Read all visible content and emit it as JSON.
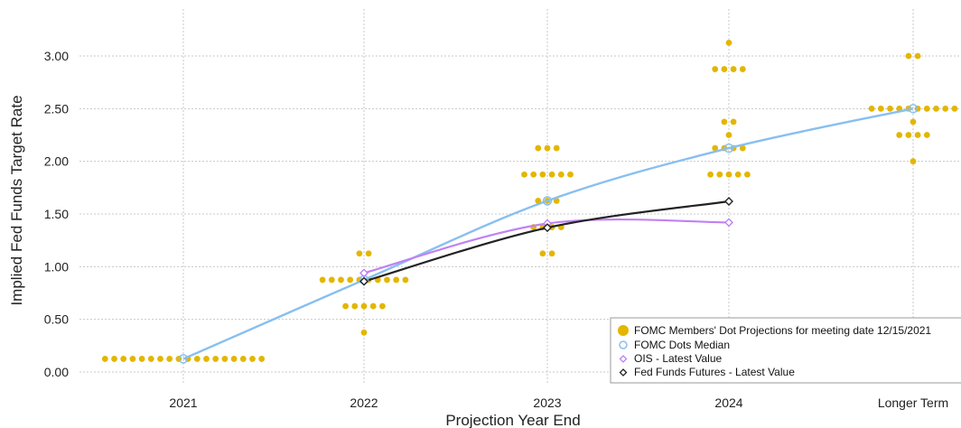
{
  "chart_data": {
    "type": "scatter",
    "xlabel": "Projection Year End",
    "ylabel": "Implied Fed Funds Target Rate",
    "categories": [
      "2021",
      "2022",
      "2023",
      "2024",
      "Longer Term"
    ],
    "y_ticks": [
      "0.00",
      "0.50",
      "1.00",
      "1.50",
      "2.00",
      "2.50",
      "3.00"
    ],
    "ylim": [
      -0.1,
      3.4
    ],
    "grid": true,
    "legend_position": "bottom-right",
    "dots": {
      "name": "FOMC Members' Dot Projections for meeting date 12/15/2021",
      "color": "#e3b600",
      "groups": [
        {
          "category": "2021",
          "points": [
            {
              "rate": 0.125,
              "count": 18
            }
          ]
        },
        {
          "category": "2022",
          "points": [
            {
              "rate": 1.125,
              "count": 2
            },
            {
              "rate": 0.875,
              "count": 10
            },
            {
              "rate": 0.625,
              "count": 5
            },
            {
              "rate": 0.375,
              "count": 1
            }
          ]
        },
        {
          "category": "2023",
          "points": [
            {
              "rate": 2.125,
              "count": 3
            },
            {
              "rate": 1.875,
              "count": 6
            },
            {
              "rate": 1.625,
              "count": 3
            },
            {
              "rate": 1.375,
              "count": 4
            },
            {
              "rate": 1.125,
              "count": 2
            }
          ]
        },
        {
          "category": "2024",
          "points": [
            {
              "rate": 3.125,
              "count": 1
            },
            {
              "rate": 2.875,
              "count": 4
            },
            {
              "rate": 2.375,
              "count": 2
            },
            {
              "rate": 2.25,
              "count": 1
            },
            {
              "rate": 2.125,
              "count": 4
            },
            {
              "rate": 1.875,
              "count": 5
            }
          ]
        },
        {
          "category": "Longer Term",
          "points": [
            {
              "rate": 3.0,
              "count": 2
            },
            {
              "rate": 2.5,
              "count": 10
            },
            {
              "rate": 2.375,
              "count": 1
            },
            {
              "rate": 2.25,
              "count": 4
            },
            {
              "rate": 2.0,
              "count": 1
            }
          ]
        }
      ]
    },
    "series": [
      {
        "name": "FOMC Dots Median",
        "color": "#88bff0",
        "values": [
          0.125,
          0.875,
          1.625,
          2.125,
          2.5
        ]
      },
      {
        "name": "OIS - Latest Value",
        "color": "#c081f5",
        "values": [
          null,
          0.94,
          1.41,
          1.42,
          null
        ]
      },
      {
        "name": "Fed Funds Futures - Latest Value",
        "color": "#222222",
        "values": [
          null,
          0.86,
          1.37,
          1.62,
          null
        ]
      }
    ]
  }
}
